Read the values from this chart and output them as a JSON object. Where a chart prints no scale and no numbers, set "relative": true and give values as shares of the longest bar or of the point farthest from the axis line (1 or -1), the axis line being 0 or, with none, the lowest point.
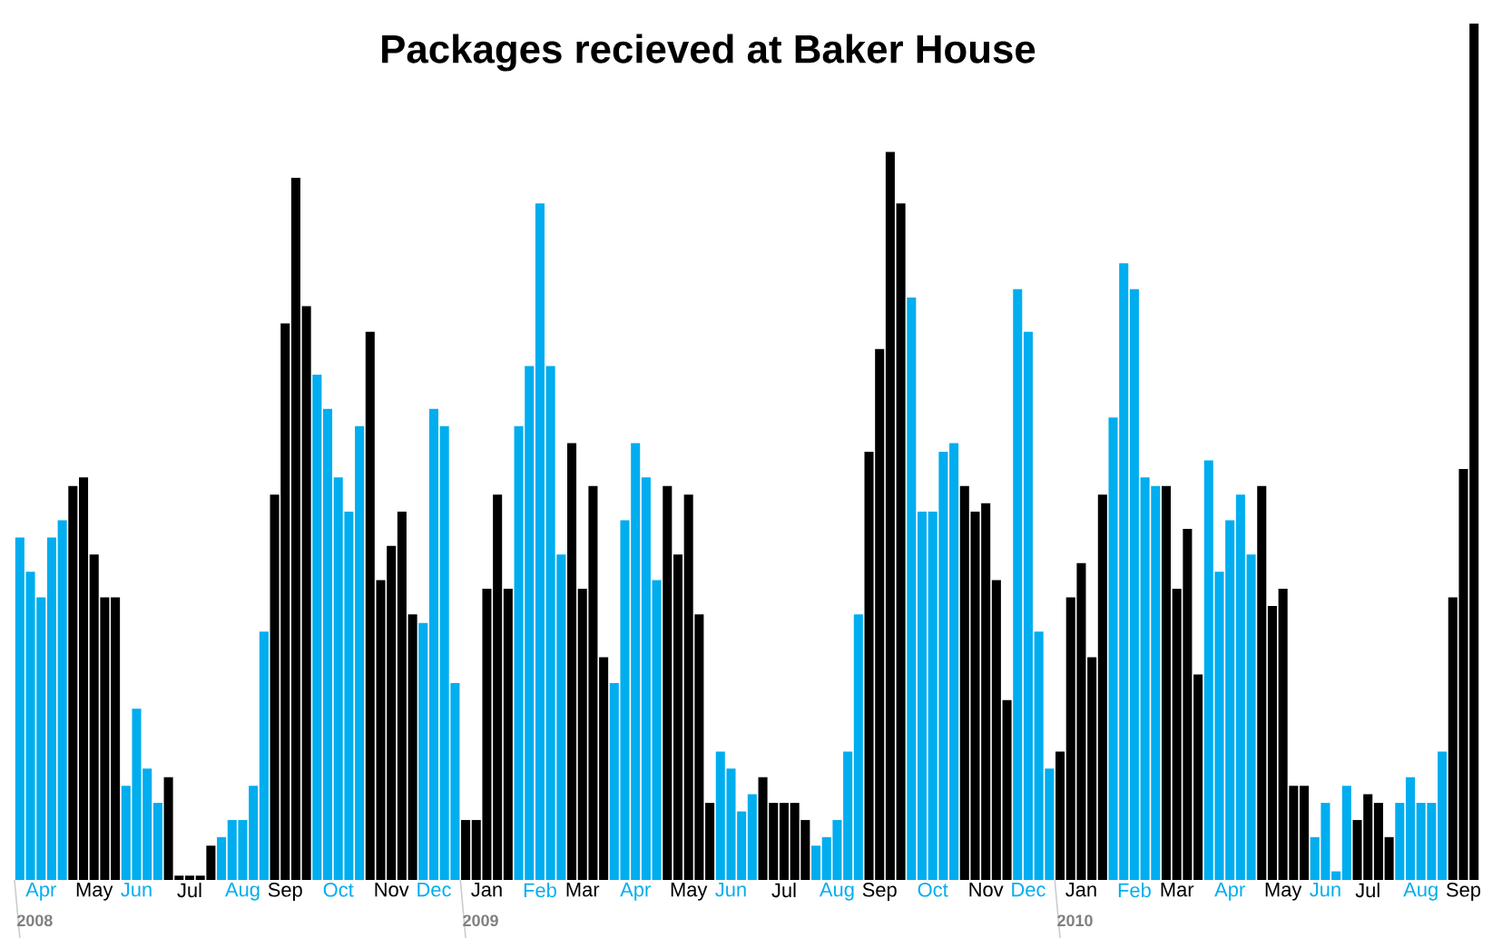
{
  "chart_data": {
    "type": "bar",
    "title": "Packages recieved at Baker House",
    "relative": true,
    "categories": [
      null,
      null,
      "Apr",
      null,
      null,
      null,
      null,
      "May",
      null,
      null,
      null,
      "Jun",
      null,
      null,
      null,
      null,
      "Jul",
      null,
      null,
      null,
      null,
      "Aug",
      null,
      null,
      null,
      "Sep",
      null,
      null,
      null,
      null,
      "Oct",
      null,
      null,
      null,
      null,
      "Nov",
      null,
      null,
      null,
      "Dec",
      null,
      null,
      null,
      null,
      "Jan",
      null,
      null,
      null,
      null,
      "Feb",
      null,
      null,
      null,
      "Mar",
      null,
      null,
      null,
      null,
      "Apr",
      null,
      null,
      null,
      null,
      "May",
      null,
      null,
      null,
      "Jun",
      null,
      null,
      null,
      null,
      "Jul",
      null,
      null,
      null,
      null,
      "Aug",
      null,
      null,
      null,
      "Sep",
      null,
      null,
      null,
      null,
      "Oct",
      null,
      null,
      null,
      null,
      "Nov",
      null,
      null,
      null,
      "Dec",
      null,
      null,
      null,
      null,
      "Jan",
      null,
      null,
      null,
      null,
      "Feb",
      null,
      null,
      null,
      "Mar",
      null,
      null,
      null,
      null,
      "Apr",
      null,
      null,
      null,
      null,
      "May",
      null,
      null,
      null,
      "Jun",
      null,
      null,
      null,
      "Jul",
      null,
      null,
      null,
      null,
      "Aug",
      null,
      null,
      null,
      "Sep",
      null
    ],
    "values": [
      0.4,
      0.36,
      0.33,
      0.4,
      0.42,
      0.46,
      0.47,
      0.38,
      0.33,
      0.33,
      0.11,
      0.2,
      0.13,
      0.09,
      0.12,
      0.005,
      0.005,
      0.005,
      0.04,
      0.05,
      0.07,
      0.07,
      0.11,
      0.29,
      0.45,
      0.65,
      0.82,
      0.67,
      0.59,
      0.55,
      0.47,
      0.43,
      0.53,
      0.64,
      0.35,
      0.39,
      0.43,
      0.31,
      0.3,
      0.55,
      0.53,
      0.23,
      0.07,
      0.07,
      0.34,
      0.45,
      0.34,
      0.53,
      0.6,
      0.79,
      0.6,
      0.38,
      0.51,
      0.34,
      0.46,
      0.26,
      0.23,
      0.42,
      0.51,
      0.47,
      0.35,
      0.46,
      0.38,
      0.45,
      0.31,
      0.09,
      0.15,
      0.13,
      0.08,
      0.1,
      0.12,
      0.09,
      0.09,
      0.09,
      0.07,
      0.04,
      0.05,
      0.07,
      0.15,
      0.31,
      0.5,
      0.62,
      0.85,
      0.79,
      0.68,
      0.43,
      0.43,
      0.5,
      0.51,
      0.46,
      0.43,
      0.44,
      0.35,
      0.21,
      0.69,
      0.64,
      0.29,
      0.13,
      0.15,
      0.33,
      0.37,
      0.26,
      0.45,
      0.54,
      0.72,
      0.69,
      0.47,
      0.46,
      0.46,
      0.34,
      0.41,
      0.24,
      0.49,
      0.36,
      0.42,
      0.45,
      0.38,
      0.46,
      0.32,
      0.34,
      0.11,
      0.11,
      0.05,
      0.09,
      0.01,
      0.11,
      0.07,
      0.1,
      0.09,
      0.05,
      0.09,
      0.12,
      0.09,
      0.09,
      0.15,
      0.33,
      0.48,
      1
    ],
    "colors": [
      "#00adef",
      "#00adef",
      "#00adef",
      "#00adef",
      "#00adef",
      "#000000",
      "#000000",
      "#000000",
      "#000000",
      "#000000",
      "#00adef",
      "#00adef",
      "#00adef",
      "#00adef",
      "#000000",
      "#000000",
      "#000000",
      "#000000",
      "#000000",
      "#00adef",
      "#00adef",
      "#00adef",
      "#00adef",
      "#00adef",
      "#000000",
      "#000000",
      "#000000",
      "#000000",
      "#00adef",
      "#00adef",
      "#00adef",
      "#00adef",
      "#00adef",
      "#000000",
      "#000000",
      "#000000",
      "#000000",
      "#000000",
      "#00adef",
      "#00adef",
      "#00adef",
      "#00adef",
      "#000000",
      "#000000",
      "#000000",
      "#000000",
      "#000000",
      "#00adef",
      "#00adef",
      "#00adef",
      "#00adef",
      "#00adef",
      "#000000",
      "#000000",
      "#000000",
      "#000000",
      "#00adef",
      "#00adef",
      "#00adef",
      "#00adef",
      "#00adef",
      "#000000",
      "#000000",
      "#000000",
      "#000000",
      "#000000",
      "#00adef",
      "#00adef",
      "#00adef",
      "#00adef",
      "#000000",
      "#000000",
      "#000000",
      "#000000",
      "#000000",
      "#00adef",
      "#00adef",
      "#00adef",
      "#00adef",
      "#00adef",
      "#000000",
      "#000000",
      "#000000",
      "#000000",
      "#00adef",
      "#00adef",
      "#00adef",
      "#00adef",
      "#00adef",
      "#000000",
      "#000000",
      "#000000",
      "#000000",
      "#000000",
      "#00adef",
      "#00adef",
      "#00adef",
      "#00adef",
      "#000000",
      "#000000",
      "#000000",
      "#000000",
      "#000000",
      "#00adef",
      "#00adef",
      "#00adef",
      "#00adef",
      "#00adef",
      "#000000",
      "#000000",
      "#000000",
      "#000000",
      "#00adef",
      "#00adef",
      "#00adef",
      "#00adef",
      "#00adef",
      "#000000",
      "#000000",
      "#000000",
      "#000000",
      "#000000",
      "#00adef",
      "#00adef",
      "#00adef",
      "#00adef",
      "#000000",
      "#000000",
      "#000000",
      "#000000",
      "#00adef",
      "#00adef",
      "#00adef",
      "#00adef",
      "#00adef",
      "#000000",
      "#000000",
      "#000000"
    ],
    "annotations": [
      "2008",
      "2009",
      "2010"
    ]
  }
}
